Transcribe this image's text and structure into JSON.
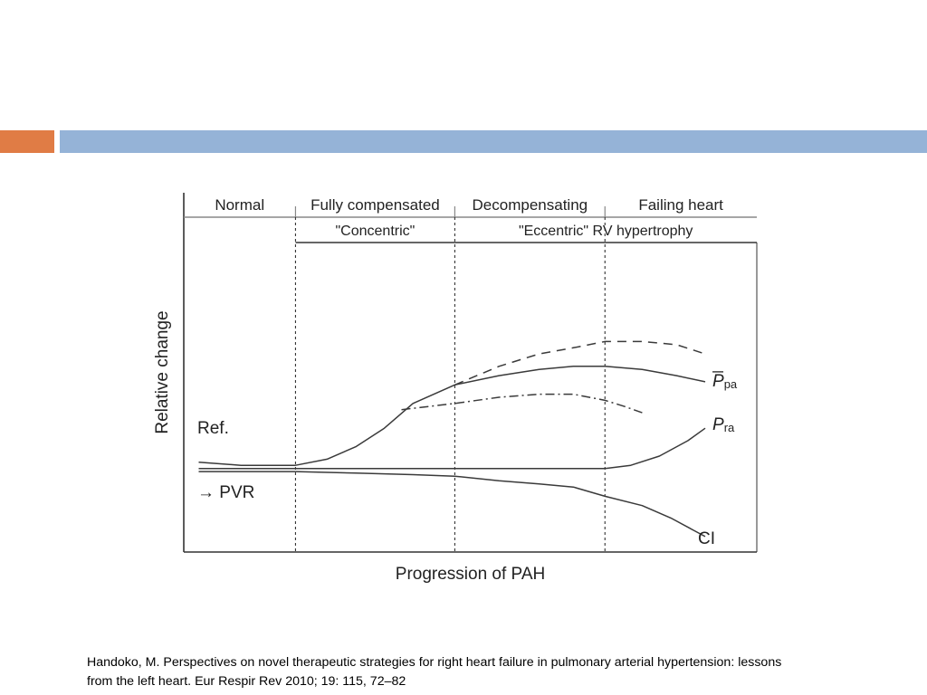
{
  "slide": {
    "accent_color": "#e07c45",
    "band_color": "#95b3d7",
    "citation_line1": "Handoko, M. Perspectives on novel therapeutic strategies for right heart failure in pulmonary arterial hypertension: lessons",
    "citation_line2": "from the left heart. Eur Respir Rev 2010; 19: 115, 72–82"
  },
  "chart_data": {
    "type": "line",
    "title": "",
    "xlabel": "Progression of PAH",
    "ylabel": "Relative change",
    "xlim": [
      0,
      100
    ],
    "ylim": [
      0,
      100
    ],
    "grid": false,
    "stages": [
      "Normal",
      "Fully compensated",
      "Decompensating",
      "Failing heart"
    ],
    "hypertrophy_labels": [
      "\"Concentric\"",
      "\"Eccentric\" RV hypertrophy"
    ],
    "stage_boundaries": [
      19.5,
      47.3,
      73.5
    ],
    "left_labels": [
      "Ref.",
      "→ PVR"
    ],
    "series": [
      {
        "name": "P",
        "subscript": "pa",
        "overbar": true,
        "style": "solid",
        "x": [
          2.6,
          10,
          19.5,
          25,
          30,
          35,
          40,
          47.3,
          55,
          62,
          68,
          73.5,
          80,
          86,
          91
        ],
        "y": [
          29,
          28,
          28,
          30,
          34,
          40,
          48,
          54,
          57,
          59,
          60,
          60,
          59,
          57,
          55
        ]
      },
      {
        "name": "P",
        "subscript": "ra",
        "overbar": false,
        "style": "solid",
        "x": [
          2.6,
          10,
          19.5,
          30,
          40,
          47.3,
          55,
          62,
          68,
          73.5,
          78,
          83,
          88,
          91
        ],
        "y": [
          27,
          27,
          27,
          27,
          27,
          27,
          27,
          27,
          27,
          27,
          28,
          31,
          36,
          40
        ]
      },
      {
        "name": "CI",
        "subscript": "",
        "overbar": false,
        "style": "solid",
        "x": [
          2.6,
          10,
          19.5,
          30,
          40,
          47.3,
          55,
          62,
          68,
          73.5,
          80,
          85,
          89,
          91
        ],
        "y": [
          26,
          26,
          26,
          25.5,
          25,
          24.5,
          23,
          22,
          21,
          18,
          15,
          11,
          7,
          5
        ]
      },
      {
        "name": "",
        "style": "dashed",
        "x": [
          47.3,
          55,
          62,
          68,
          73.5,
          80,
          86,
          91
        ],
        "y": [
          54,
          60,
          64,
          66,
          68,
          68,
          67,
          64
        ]
      },
      {
        "name": "",
        "style": "dashdot",
        "x": [
          38,
          47.3,
          55,
          62,
          68,
          73.5,
          77,
          80
        ],
        "y": [
          46,
          48,
          50,
          51,
          51,
          49,
          47,
          45
        ]
      }
    ]
  }
}
